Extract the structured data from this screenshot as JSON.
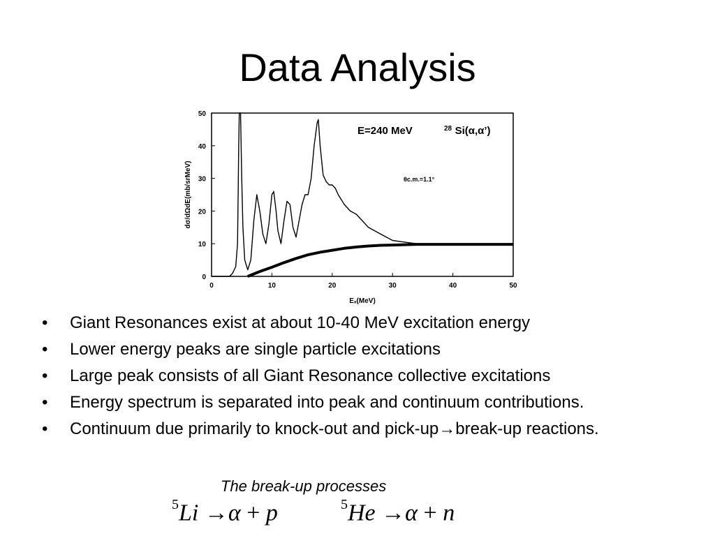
{
  "slide": {
    "title": "Data Analysis",
    "bullets": [
      "Giant Resonances exist at about 10-40 MeV excitation energy",
      "Lower energy peaks are single particle excitations",
      "Large peak consists of all Giant Resonance collective excitations",
      "Energy spectrum is separated into  peak and continuum contributions.",
      "Continuum due primarily to knock-out and pick-up→break-up reactions."
    ],
    "bullet_symbol": "•",
    "caption": "The break-up processes",
    "equations": [
      {
        "mass": "5",
        "nucleus": "Li",
        "arrow": "→",
        "alpha": "α",
        "plus": "+",
        "product": "p"
      },
      {
        "mass": "5",
        "nucleus": "He",
        "arrow": "→",
        "alpha": "α",
        "plus": "+",
        "product": "n"
      }
    ]
  },
  "chart_data": {
    "type": "line",
    "xlabel": "Eₓ(MeV)",
    "ylabel": "dσ/dΩdE(mb/srMeV)",
    "xlim": [
      0,
      50
    ],
    "ylim": [
      0,
      50
    ],
    "xticks": [
      "0",
      "10",
      "20",
      "30",
      "40",
      "50"
    ],
    "yticks": [
      "0",
      "10",
      "20",
      "30",
      "40",
      "50"
    ],
    "annotation_energy": "E=240 MeV",
    "annotation_reaction_mass": "28",
    "annotation_reaction": "Si(α,α’)",
    "annotation_angle": "θc.m.=1.1°",
    "grid": false,
    "series": [
      {
        "style": "thin",
        "x": [
          0,
          3,
          3.5,
          4,
          4.3,
          4.5,
          4.6,
          4.7,
          4.8,
          5,
          5.2,
          5.5,
          6,
          6.5,
          7,
          7.5,
          8,
          8.5,
          9,
          9.5,
          10,
          10.3,
          10.7,
          11,
          11.5,
          12,
          12.5,
          13,
          13.5,
          14,
          14.5,
          15,
          15.5,
          16,
          16.5,
          17,
          17.5,
          17.7,
          18,
          18.5,
          19,
          19.5,
          20,
          20.5,
          21,
          22,
          23,
          24,
          25,
          26,
          28,
          30,
          32,
          34,
          36,
          38,
          40,
          45,
          50
        ],
        "y": [
          0,
          0,
          1,
          3,
          10,
          40,
          50,
          50,
          50,
          30,
          15,
          5,
          2,
          5,
          17,
          25,
          20,
          13,
          10,
          16,
          25,
          26,
          20,
          14,
          10,
          17,
          23,
          22,
          15,
          12,
          17,
          22,
          25,
          25,
          30,
          40,
          47,
          48,
          40,
          31,
          29,
          28,
          28,
          27,
          25,
          22,
          20,
          19,
          17,
          15,
          13,
          11,
          10.5,
          10,
          10,
          10,
          10,
          10,
          10
        ]
      },
      {
        "style": "thick",
        "x": [
          6,
          8,
          10,
          12,
          14,
          16,
          18,
          20,
          22,
          24,
          26,
          28,
          30,
          32,
          34,
          36,
          38,
          40,
          45,
          50
        ],
        "y": [
          0,
          1.5,
          2.8,
          4.2,
          5.5,
          6.6,
          7.4,
          8.0,
          8.6,
          9.0,
          9.3,
          9.5,
          9.6,
          9.7,
          9.8,
          9.8,
          9.8,
          9.8,
          9.8,
          9.8
        ]
      }
    ]
  }
}
